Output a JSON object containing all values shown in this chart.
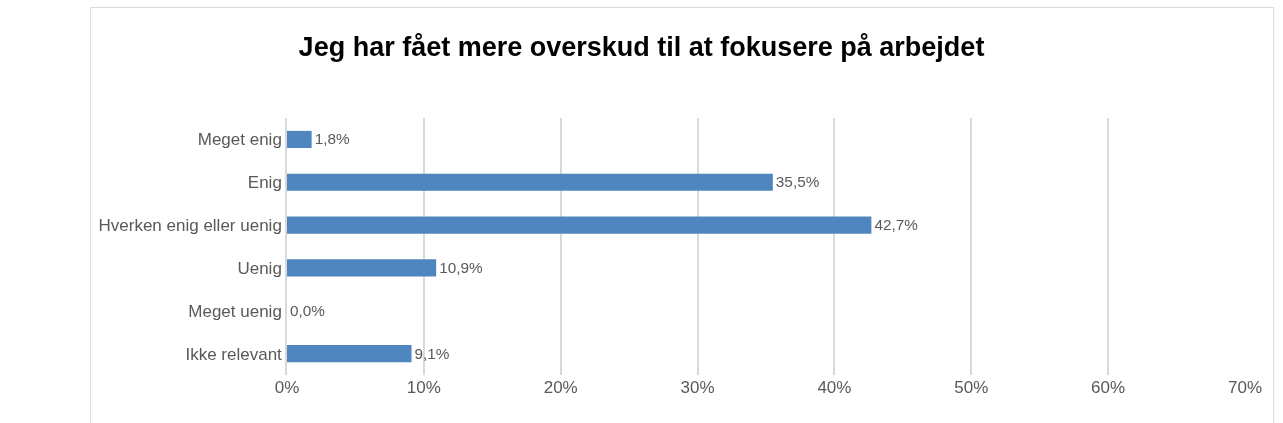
{
  "chart_data": {
    "type": "bar",
    "orientation": "horizontal",
    "title": "Jeg har fået mere overskud til at fokusere på arbejdet",
    "categories": [
      "Meget enig",
      "Enig",
      "Hverken enig eller uenig",
      "Uenig",
      "Meget uenig",
      "Ikke relevant"
    ],
    "values": [
      1.8,
      35.5,
      42.7,
      10.9,
      0.0,
      9.1
    ],
    "value_labels": [
      "1,8%",
      "35,5%",
      "42,7%",
      "10,9%",
      "0,0%",
      "9,1%"
    ],
    "color": "#4f86c0",
    "xlim": [
      0,
      70
    ],
    "xticks": [
      {
        "value": 0,
        "label": "0%"
      },
      {
        "value": 10,
        "label": "10%"
      },
      {
        "value": 20,
        "label": "20%"
      },
      {
        "value": 30,
        "label": "30%"
      },
      {
        "value": 40,
        "label": "40%"
      },
      {
        "value": 50,
        "label": "50%"
      },
      {
        "value": 60,
        "label": "60%"
      },
      {
        "value": 70,
        "label": "70%"
      }
    ],
    "grid": "x"
  }
}
